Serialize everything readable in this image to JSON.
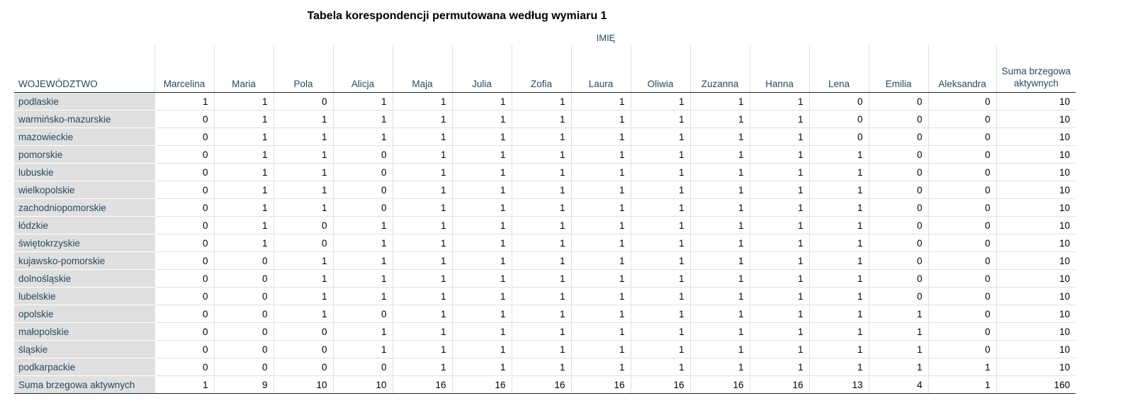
{
  "title": "Tabela korespondencji permutowana według wymiaru 1",
  "column_caption": "IMIĘ",
  "row_header": "WOJEWÓDZTWO",
  "columns": [
    "Marcelina",
    "Maria",
    "Pola",
    "Alicja",
    "Maja",
    "Julia",
    "Zofia",
    "Laura",
    "Oliwia",
    "Zuzanna",
    "Hanna",
    "Lena",
    "Emilia",
    "Aleksandra",
    "Suma brzegowa aktywnych"
  ],
  "rows": [
    {
      "label": "podlaskie",
      "values": [
        1,
        1,
        0,
        1,
        1,
        1,
        1,
        1,
        1,
        1,
        1,
        0,
        0,
        0,
        10
      ]
    },
    {
      "label": "warmińsko-mazurskie",
      "values": [
        0,
        1,
        1,
        1,
        1,
        1,
        1,
        1,
        1,
        1,
        1,
        0,
        0,
        0,
        10
      ]
    },
    {
      "label": "mazowieckie",
      "values": [
        0,
        1,
        1,
        1,
        1,
        1,
        1,
        1,
        1,
        1,
        1,
        0,
        0,
        0,
        10
      ]
    },
    {
      "label": "pomorskie",
      "values": [
        0,
        1,
        1,
        0,
        1,
        1,
        1,
        1,
        1,
        1,
        1,
        1,
        0,
        0,
        10
      ]
    },
    {
      "label": "lubuskie",
      "values": [
        0,
        1,
        1,
        0,
        1,
        1,
        1,
        1,
        1,
        1,
        1,
        1,
        0,
        0,
        10
      ]
    },
    {
      "label": "wielkopolskie",
      "values": [
        0,
        1,
        1,
        0,
        1,
        1,
        1,
        1,
        1,
        1,
        1,
        1,
        0,
        0,
        10
      ]
    },
    {
      "label": "zachodniopomorskie",
      "values": [
        0,
        1,
        1,
        0,
        1,
        1,
        1,
        1,
        1,
        1,
        1,
        1,
        0,
        0,
        10
      ]
    },
    {
      "label": "łódzkie",
      "values": [
        0,
        1,
        0,
        1,
        1,
        1,
        1,
        1,
        1,
        1,
        1,
        1,
        0,
        0,
        10
      ]
    },
    {
      "label": "świętokrzyskie",
      "values": [
        0,
        1,
        0,
        1,
        1,
        1,
        1,
        1,
        1,
        1,
        1,
        1,
        0,
        0,
        10
      ]
    },
    {
      "label": "kujawsko-pomorskie",
      "values": [
        0,
        0,
        1,
        1,
        1,
        1,
        1,
        1,
        1,
        1,
        1,
        1,
        0,
        0,
        10
      ]
    },
    {
      "label": "dolnośląskie",
      "values": [
        0,
        0,
        1,
        1,
        1,
        1,
        1,
        1,
        1,
        1,
        1,
        1,
        0,
        0,
        10
      ]
    },
    {
      "label": "lubelskie",
      "values": [
        0,
        0,
        1,
        1,
        1,
        1,
        1,
        1,
        1,
        1,
        1,
        1,
        0,
        0,
        10
      ]
    },
    {
      "label": "opolskie",
      "values": [
        0,
        0,
        1,
        0,
        1,
        1,
        1,
        1,
        1,
        1,
        1,
        1,
        1,
        0,
        10
      ]
    },
    {
      "label": "małopolskie",
      "values": [
        0,
        0,
        0,
        1,
        1,
        1,
        1,
        1,
        1,
        1,
        1,
        1,
        1,
        0,
        10
      ]
    },
    {
      "label": "śląskie",
      "values": [
        0,
        0,
        0,
        1,
        1,
        1,
        1,
        1,
        1,
        1,
        1,
        1,
        1,
        0,
        10
      ]
    },
    {
      "label": "podkarpackie",
      "values": [
        0,
        0,
        0,
        0,
        1,
        1,
        1,
        1,
        1,
        1,
        1,
        1,
        1,
        1,
        10
      ]
    },
    {
      "label": "Suma brzegowa aktywnych",
      "values": [
        1,
        9,
        10,
        10,
        16,
        16,
        16,
        16,
        16,
        16,
        16,
        13,
        4,
        1,
        160
      ]
    }
  ],
  "colors": {
    "header_text": "#264a60",
    "row_header_bg": "#e0e0e0",
    "rule": "#152935"
  }
}
